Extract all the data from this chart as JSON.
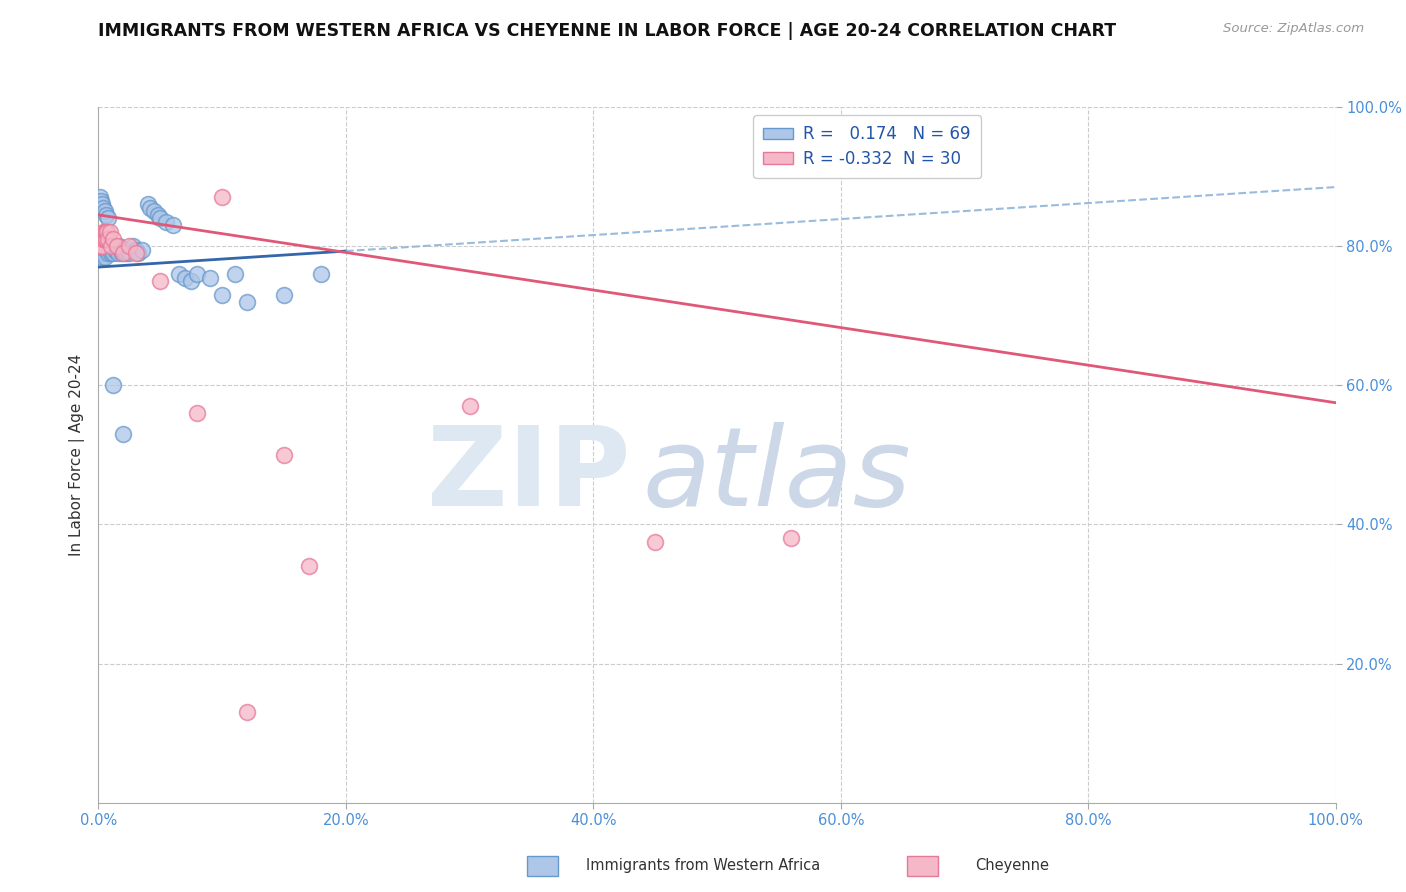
{
  "title": "IMMIGRANTS FROM WESTERN AFRICA VS CHEYENNE IN LABOR FORCE | AGE 20-24 CORRELATION CHART",
  "source": "Source: ZipAtlas.com",
  "ylabel": "In Labor Force | Age 20-24",
  "xlim": [
    0.0,
    1.0
  ],
  "ylim": [
    0.0,
    1.0
  ],
  "blue_R": 0.174,
  "blue_N": 69,
  "pink_R": -0.332,
  "pink_N": 30,
  "blue_color": "#aec6e8",
  "pink_color": "#f4b8c8",
  "blue_edge": "#6699cc",
  "pink_edge": "#e87898",
  "blue_line_color": "#3366aa",
  "pink_line_color": "#e05878",
  "blue_dash_color": "#99bbdd",
  "tick_color": "#4a90d9",
  "grid_color": "#cccccc",
  "watermark_zip_color": "#dde8f2",
  "watermark_atlas_color": "#ccd8e8",
  "legend_label_blue": "Immigrants from Western Africa",
  "legend_label_pink": "Cheyenne",
  "blue_line_start_x": 0.0,
  "blue_line_solid_end_x": 0.2,
  "blue_line_end_x": 1.0,
  "blue_line_start_y": 0.77,
  "blue_line_end_y": 0.885,
  "pink_line_start_x": 0.0,
  "pink_line_end_x": 1.0,
  "pink_line_start_y": 0.845,
  "pink_line_end_y": 0.575,
  "blue_pts_x": [
    0.001,
    0.001,
    0.001,
    0.002,
    0.002,
    0.002,
    0.003,
    0.003,
    0.003,
    0.003,
    0.004,
    0.004,
    0.004,
    0.005,
    0.005,
    0.005,
    0.006,
    0.006,
    0.007,
    0.007,
    0.008,
    0.008,
    0.009,
    0.01,
    0.01,
    0.011,
    0.012,
    0.012,
    0.013,
    0.014,
    0.015,
    0.016,
    0.017,
    0.018,
    0.019,
    0.02,
    0.022,
    0.024,
    0.025,
    0.028,
    0.03,
    0.032,
    0.035,
    0.04,
    0.042,
    0.045,
    0.048,
    0.05,
    0.055,
    0.06,
    0.065,
    0.07,
    0.075,
    0.08,
    0.09,
    0.1,
    0.11,
    0.12,
    0.15,
    0.18,
    0.001,
    0.002,
    0.003,
    0.004,
    0.005,
    0.006,
    0.008,
    0.012,
    0.02
  ],
  "blue_pts_y": [
    0.8,
    0.795,
    0.79,
    0.8,
    0.795,
    0.79,
    0.8,
    0.795,
    0.79,
    0.785,
    0.8,
    0.795,
    0.79,
    0.8,
    0.79,
    0.785,
    0.8,
    0.795,
    0.8,
    0.795,
    0.795,
    0.79,
    0.795,
    0.8,
    0.79,
    0.795,
    0.8,
    0.79,
    0.795,
    0.8,
    0.795,
    0.79,
    0.8,
    0.795,
    0.79,
    0.795,
    0.79,
    0.795,
    0.79,
    0.8,
    0.795,
    0.79,
    0.795,
    0.86,
    0.855,
    0.85,
    0.845,
    0.84,
    0.835,
    0.83,
    0.76,
    0.755,
    0.75,
    0.76,
    0.755,
    0.73,
    0.76,
    0.72,
    0.73,
    0.76,
    0.87,
    0.865,
    0.86,
    0.855,
    0.85,
    0.845,
    0.84,
    0.6,
    0.53
  ],
  "pink_pts_x": [
    0.001,
    0.001,
    0.002,
    0.002,
    0.003,
    0.003,
    0.004,
    0.004,
    0.005,
    0.005,
    0.006,
    0.006,
    0.007,
    0.008,
    0.009,
    0.01,
    0.012,
    0.015,
    0.02,
    0.025,
    0.03,
    0.05,
    0.08,
    0.1,
    0.12,
    0.15,
    0.17,
    0.3,
    0.45,
    0.56
  ],
  "pink_pts_y": [
    0.81,
    0.8,
    0.81,
    0.8,
    0.81,
    0.8,
    0.82,
    0.81,
    0.82,
    0.81,
    0.82,
    0.81,
    0.82,
    0.81,
    0.82,
    0.8,
    0.81,
    0.8,
    0.79,
    0.8,
    0.79,
    0.75,
    0.56,
    0.87,
    0.13,
    0.5,
    0.34,
    0.57,
    0.375,
    0.38
  ]
}
